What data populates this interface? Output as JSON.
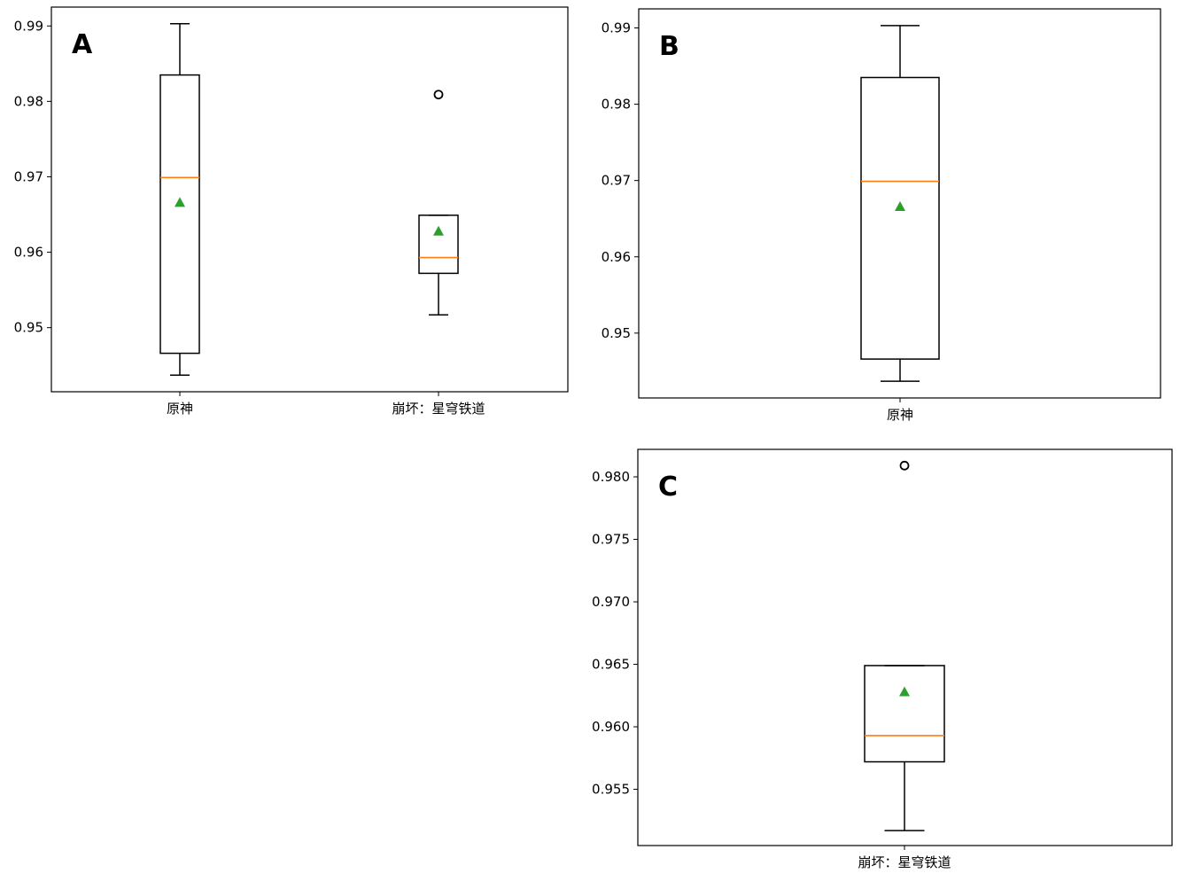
{
  "chart_data": [
    {
      "panel": "A",
      "type": "box",
      "categories": [
        "原神",
        "崩坏：星穹铁道"
      ],
      "yticks": [
        "0.95",
        "0.96",
        "0.97",
        "0.98",
        "0.99"
      ],
      "ylim": [
        0.9415,
        0.9925
      ],
      "boxes": [
        {
          "whislo": 0.9437,
          "q1": 0.9466,
          "med": 0.9699,
          "q3": 0.9835,
          "whishi": 0.9903,
          "mean": 0.9666,
          "fliers": []
        },
        {
          "whislo": 0.9517,
          "q1": 0.9572,
          "med": 0.9593,
          "q3": 0.9649,
          "whishi": 0.9649,
          "mean": 0.9628,
          "fliers": [
            0.9809
          ]
        }
      ],
      "colors": {
        "box": "#000000",
        "median": "#ff7f0e",
        "mean": "#2ca02c"
      }
    },
    {
      "panel": "B",
      "type": "box",
      "categories": [
        "原神"
      ],
      "yticks": [
        "0.95",
        "0.96",
        "0.97",
        "0.98",
        "0.99"
      ],
      "ylim": [
        0.9415,
        0.9925
      ],
      "boxes": [
        {
          "whislo": 0.9437,
          "q1": 0.9466,
          "med": 0.9699,
          "q3": 0.9835,
          "whishi": 0.9903,
          "mean": 0.9666,
          "fliers": []
        }
      ],
      "colors": {
        "box": "#000000",
        "median": "#ff7f0e",
        "mean": "#2ca02c"
      }
    },
    {
      "panel": "C",
      "type": "box",
      "categories": [
        "崩坏：星穹铁道"
      ],
      "yticks": [
        "0.955",
        "0.960",
        "0.965",
        "0.970",
        "0.975",
        "0.980"
      ],
      "ylim": [
        0.9505,
        0.9822
      ],
      "boxes": [
        {
          "whislo": 0.9517,
          "q1": 0.9572,
          "med": 0.9593,
          "q3": 0.9649,
          "whishi": 0.9649,
          "mean": 0.9628,
          "fliers": [
            0.9809
          ]
        }
      ],
      "colors": {
        "box": "#000000",
        "median": "#ff7f0e",
        "mean": "#2ca02c"
      }
    }
  ]
}
